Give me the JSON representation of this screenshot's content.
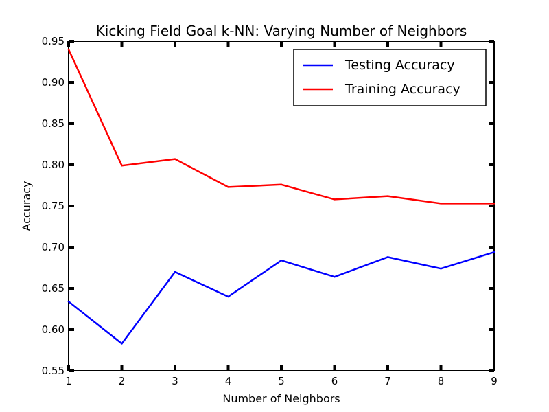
{
  "chart_data": {
    "type": "line",
    "title": "Kicking Field Goal k-NN: Varying Number of Neighbors",
    "xlabel": "Number of Neighbors",
    "ylabel": "Accuracy",
    "xlim": [
      1,
      9
    ],
    "ylim": [
      0.55,
      0.95
    ],
    "xticks": [
      1,
      2,
      3,
      4,
      5,
      6,
      7,
      8,
      9
    ],
    "xtick_labels": [
      "1",
      "2",
      "3",
      "4",
      "5",
      "6",
      "7",
      "8",
      "9"
    ],
    "yticks": [
      0.55,
      0.6,
      0.65,
      0.7,
      0.75,
      0.8,
      0.85,
      0.9,
      0.95
    ],
    "ytick_labels": [
      "0.55",
      "0.60",
      "0.65",
      "0.70",
      "0.75",
      "0.80",
      "0.85",
      "0.90",
      "0.95"
    ],
    "grid": false,
    "legend_position": "top-right",
    "series": [
      {
        "name": "Testing Accuracy",
        "color": "#0000ff",
        "x": [
          1,
          2,
          3,
          4,
          5,
          6,
          7,
          8,
          9
        ],
        "y": [
          0.634,
          0.583,
          0.67,
          0.64,
          0.684,
          0.664,
          0.688,
          0.674,
          0.694
        ]
      },
      {
        "name": "Training Accuracy",
        "color": "#ff0000",
        "x": [
          1,
          2,
          3,
          4,
          5,
          6,
          7,
          8,
          9
        ],
        "y": [
          0.94,
          0.799,
          0.807,
          0.773,
          0.776,
          0.758,
          0.762,
          0.753,
          0.753
        ]
      }
    ]
  }
}
